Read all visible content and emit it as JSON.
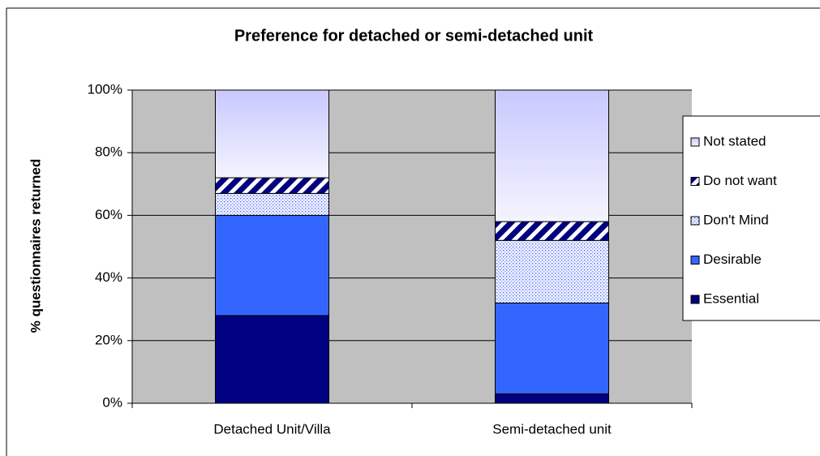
{
  "chart_data": {
    "type": "stacked_bar_100",
    "title": "Preference for detached or semi-detached unit",
    "y_label": "% questionnaires returned",
    "categories": [
      "Detached Unit/Villa",
      "Semi-detached unit"
    ],
    "series": [
      {
        "name": "Essential",
        "color": "#000080",
        "pattern": "solid",
        "values": [
          28,
          3
        ]
      },
      {
        "name": "Desirable",
        "color": "#3366ff",
        "pattern": "solid",
        "values": [
          32,
          29
        ]
      },
      {
        "name": "Don't Mind",
        "color": "#3366ff",
        "pattern": "dots",
        "values": [
          7,
          20
        ]
      },
      {
        "name": "Do not want",
        "color": "#000080",
        "pattern": "stripes",
        "values": [
          5,
          6
        ]
      },
      {
        "name": "Not stated",
        "color": "#ccccff",
        "pattern": "gradient",
        "values": [
          28,
          42
        ]
      }
    ],
    "ylim": [
      0,
      100
    ],
    "yticks": [
      {
        "value": 0,
        "label": "0%"
      },
      {
        "value": 20,
        "label": "20%"
      },
      {
        "value": 40,
        "label": "40%"
      },
      {
        "value": 60,
        "label": "60%"
      },
      {
        "value": 80,
        "label": "80%"
      },
      {
        "value": 100,
        "label": "100%"
      }
    ],
    "grid": true,
    "plot_background": "#c0c0c0",
    "legend": "right"
  }
}
